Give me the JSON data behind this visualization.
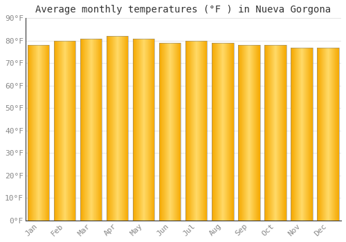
{
  "title": "Average monthly temperatures (°F ) in Nueva Gorgona",
  "months": [
    "Jan",
    "Feb",
    "Mar",
    "Apr",
    "May",
    "Jun",
    "Jul",
    "Aug",
    "Sep",
    "Oct",
    "Nov",
    "Dec"
  ],
  "values": [
    78,
    80,
    81,
    82,
    81,
    79,
    80,
    79,
    78,
    78,
    77,
    77
  ],
  "ylim": [
    0,
    90
  ],
  "yticks": [
    0,
    10,
    20,
    30,
    40,
    50,
    60,
    70,
    80,
    90
  ],
  "ytick_labels": [
    "0°F",
    "10°F",
    "20°F",
    "30°F",
    "40°F",
    "50°F",
    "60°F",
    "70°F",
    "80°F",
    "90°F"
  ],
  "background_color": "#FFFFFF",
  "grid_color": "#E0E0E0",
  "title_fontsize": 10,
  "tick_fontsize": 8,
  "tick_color": "#888888",
  "bar_width": 0.82,
  "bar_color_bottom": "#F5A800",
  "bar_color_top": "#FFD966",
  "bar_edge_color": "#888888",
  "spine_color": "#333333"
}
